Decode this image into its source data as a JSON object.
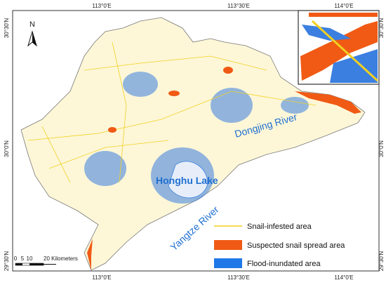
{
  "north_arrow": "N",
  "graticule": {
    "top": [
      "113°0'E",
      "113°30'E",
      "114°0'E"
    ],
    "bottom": [
      "113°0'E",
      "113°30'E",
      "114°0'E"
    ],
    "left": [
      "30°30'N",
      "30°0'N",
      "29°30'N"
    ],
    "right": [
      "30°30'N",
      "30°0'N",
      "29°30'N"
    ]
  },
  "places": [
    "Dongjing River",
    "Honghu Lake",
    "Yangtze River"
  ],
  "scale_bar": [
    "0",
    "5",
    "10",
    "20 Kilometers"
  ],
  "legend": [
    "Snail-infested area",
    "Suspected snail spread area",
    "Flood-inundated area"
  ]
}
